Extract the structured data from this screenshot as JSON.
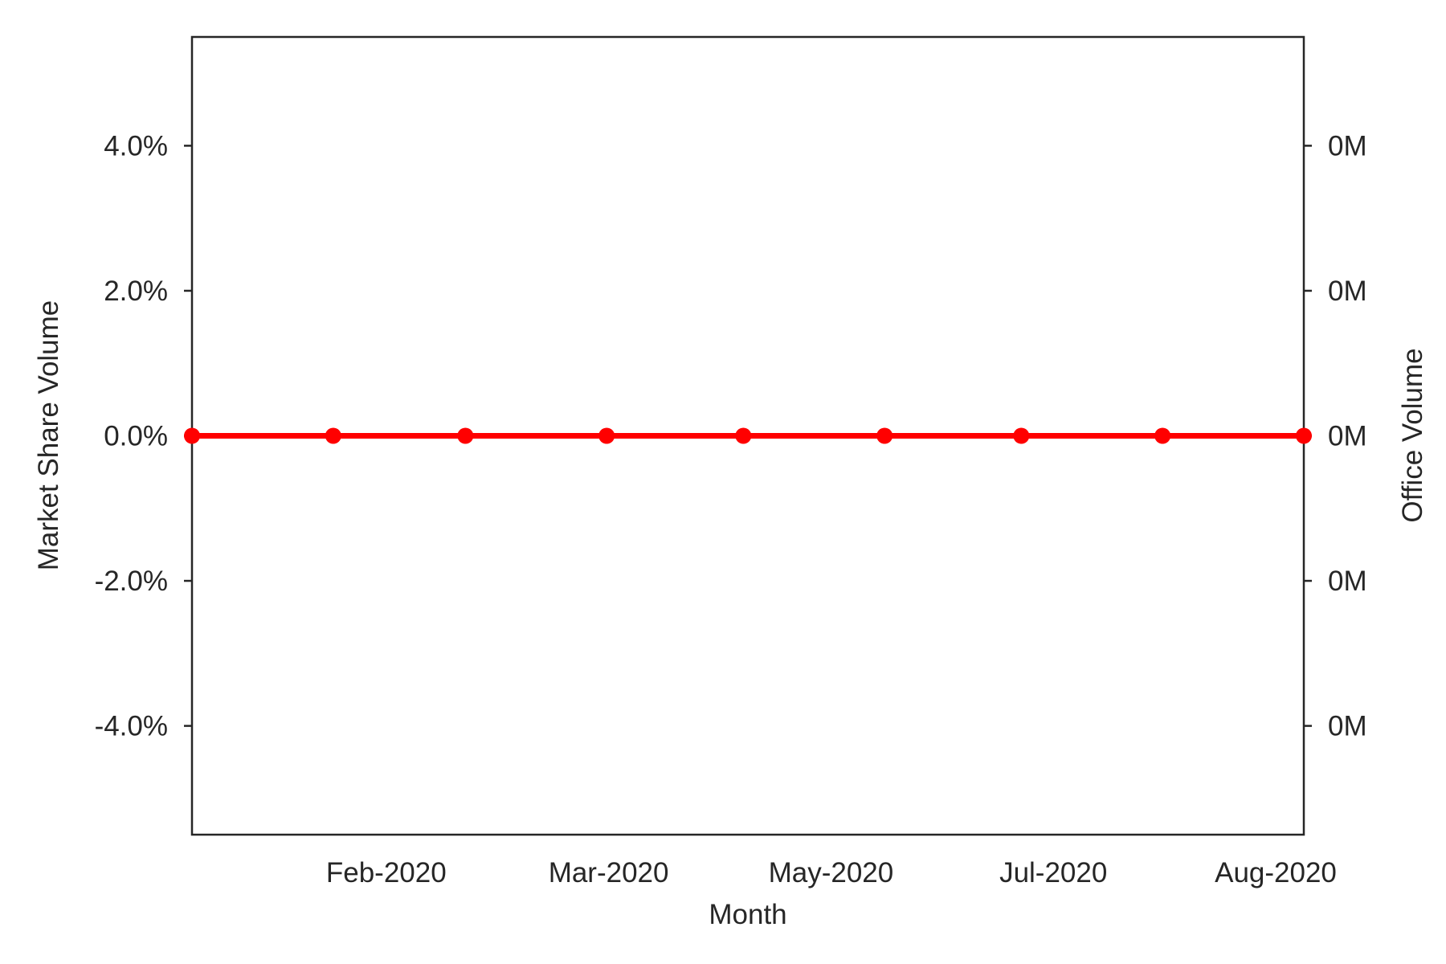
{
  "chart_data": {
    "type": "line",
    "title": "",
    "xlabel": "Month",
    "ylabel": "Market Share Volume",
    "y2label": "Office Volume",
    "x_tick_labels": [
      "Feb-2020",
      "Mar-2020",
      "May-2020",
      "Jul-2020",
      "Aug-2020"
    ],
    "x": [
      "2020-01-01",
      "2020-02-01",
      "2020-03-01",
      "2020-04-01",
      "2020-05-01",
      "2020-06-01",
      "2020-07-01",
      "2020-08-01",
      "2020-09-01"
    ],
    "series": [
      {
        "values": [
          0,
          0,
          0,
          0,
          0,
          0,
          0,
          0,
          0
        ],
        "color": "#ff0000",
        "marker": "circle"
      }
    ],
    "ylim": [
      -0.055,
      0.055
    ],
    "y_ticks": [
      -0.04,
      -0.02,
      0.0,
      0.02,
      0.04
    ],
    "y_tick_labels": [
      "-4.0%",
      "-2.0%",
      "0.0%",
      "2.0%",
      "4.0%"
    ],
    "y2_tick_labels": [
      "0M",
      "0M",
      "0M",
      "0M",
      "0M"
    ],
    "grid": false,
    "legend": "none"
  }
}
